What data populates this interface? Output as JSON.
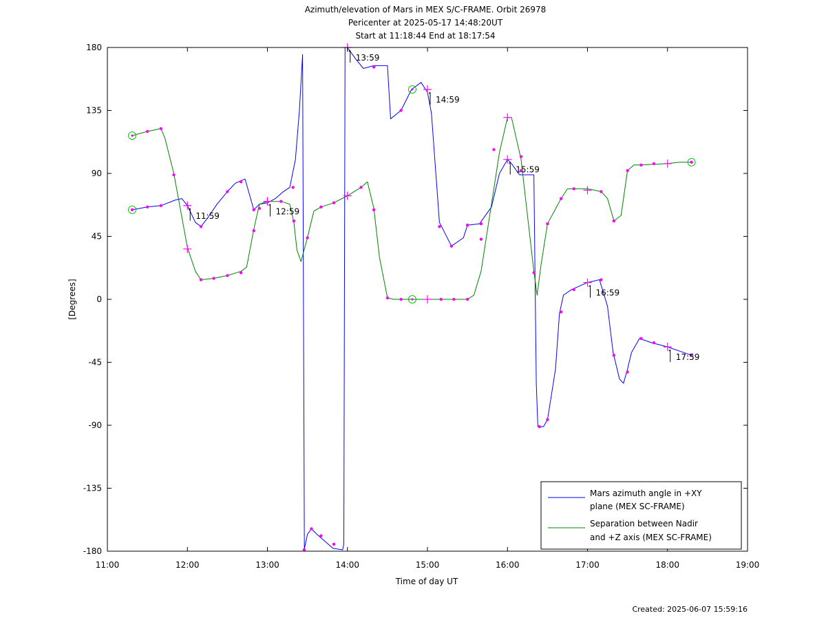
{
  "header": {
    "title_line1": "Azimuth/elevation of Mars in MEX S/C-FRAME.  Orbit 26978",
    "title_line2": "Pericenter at 2025-05-17 14:48:20UT",
    "title_line3": "Start at 11:18:44 End at 18:17:54"
  },
  "footer": {
    "created": "Created: 2025-06-07 15:59:16"
  },
  "chart_data": {
    "type": "line",
    "xlabel": "Time of day UT",
    "ylabel": "[Degrees]",
    "xlim": [
      11.0,
      19.0
    ],
    "ylim": [
      -180,
      180
    ],
    "xticks": [
      11,
      12,
      13,
      14,
      15,
      16,
      17,
      18,
      19
    ],
    "xtick_labels": [
      "11:00",
      "12:00",
      "13:00",
      "14:00",
      "15:00",
      "16:00",
      "17:00",
      "18:00",
      "19:00"
    ],
    "yticks": [
      180,
      135,
      90,
      45,
      0,
      -45,
      -90,
      -135,
      -180
    ],
    "ytick_labels": [
      "180",
      "135",
      "90",
      "45",
      "0",
      "-45",
      "-90",
      "-135",
      "-180"
    ],
    "grid": false,
    "legend_position": "bottom-right",
    "series": [
      {
        "name": "Mars azimuth angle in +XY plane (MEX SC-FRAME)",
        "legend_lines": [
          "Mars azimuth angle in +XY",
          "plane (MEX SC-FRAME)"
        ],
        "color": "#0000ff",
        "x": [
          11.31,
          11.5,
          11.67,
          11.85,
          11.93,
          12.0,
          12.1,
          12.17,
          12.25,
          12.37,
          12.5,
          12.6,
          12.72,
          12.83,
          12.9,
          13.0,
          13.1,
          13.2,
          13.28,
          13.35,
          13.4,
          13.44,
          13.462,
          13.464,
          13.5,
          13.55,
          13.62,
          13.7,
          13.82,
          13.94,
          13.955,
          13.97,
          14.0,
          14.1,
          14.2,
          14.33,
          14.5,
          14.54,
          14.67,
          14.8,
          14.92,
          15.0,
          15.05,
          15.15,
          15.3,
          15.45,
          15.5,
          15.65,
          15.8,
          15.9,
          16.0,
          16.05,
          16.15,
          16.2,
          16.33,
          16.36,
          16.38,
          16.45,
          16.5,
          16.6,
          16.65,
          16.7,
          16.8,
          17.0,
          17.15,
          17.25,
          17.32,
          17.4,
          17.45,
          17.5,
          17.55,
          17.65,
          17.8,
          18.0,
          18.15,
          18.3
        ],
        "y": [
          64,
          66,
          67,
          71,
          72,
          67,
          55,
          52,
          58,
          68,
          77,
          83,
          86,
          64,
          68,
          69,
          72,
          77,
          80,
          100,
          135,
          175,
          -180,
          -178,
          -168,
          -164,
          -168,
          -172,
          -178,
          -179,
          -175,
          180,
          180,
          172,
          165,
          167,
          167,
          129,
          135,
          150,
          155,
          148,
          133,
          55,
          38,
          44,
          53,
          54,
          66,
          90,
          100,
          97,
          89,
          89,
          89,
          -60,
          -91,
          -91,
          -86,
          -50,
          -10,
          3,
          7,
          12,
          14,
          -5,
          -38,
          -57,
          -60,
          -50,
          -38,
          -28,
          -31,
          -34,
          -37,
          -40
        ],
        "markers": {
          "dots": [
            [
              11.31,
              64
            ],
            [
              11.5,
              66
            ],
            [
              11.67,
              67
            ],
            [
              12.17,
              52
            ],
            [
              12.5,
              77
            ],
            [
              12.67,
              84
            ],
            [
              12.83,
              64
            ],
            [
              13.32,
              80
            ],
            [
              13.46,
              -179
            ],
            [
              13.55,
              -164
            ],
            [
              13.67,
              -169
            ],
            [
              13.83,
              -175
            ],
            [
              14.33,
              166
            ],
            [
              14.67,
              135
            ],
            [
              15.15,
              52
            ],
            [
              15.3,
              38
            ],
            [
              15.5,
              53
            ],
            [
              15.67,
              54
            ],
            [
              16.17,
              92
            ],
            [
              16.4,
              -91
            ],
            [
              16.5,
              -86
            ],
            [
              16.67,
              -9
            ],
            [
              16.83,
              7
            ],
            [
              17.17,
              14
            ],
            [
              17.33,
              -40
            ],
            [
              17.5,
              -52
            ],
            [
              17.67,
              -28
            ],
            [
              17.83,
              -31
            ],
            [
              18.3,
              -40
            ]
          ],
          "crosses": [
            [
              12.0,
              67
            ],
            [
              13.0,
              70
            ],
            [
              14.0,
              180
            ],
            [
              15.0,
              150
            ],
            [
              16.0,
              100
            ],
            [
              17.0,
              12
            ],
            [
              18.0,
              -34
            ]
          ],
          "circles": [
            [
              11.31,
              64
            ],
            [
              14.81,
              150
            ]
          ]
        }
      },
      {
        "name": "Separation between Nadir and +Z axis (MEX SC-FRAME)",
        "legend_lines": [
          "Separation between Nadir",
          "and +Z axis (MEX SC-FRAME)"
        ],
        "color": "#008000",
        "x": [
          11.31,
          11.5,
          11.67,
          11.72,
          11.83,
          12.0,
          12.1,
          12.17,
          12.33,
          12.5,
          12.67,
          12.74,
          12.83,
          12.9,
          13.0,
          13.17,
          13.28,
          13.33,
          13.37,
          13.42,
          13.5,
          13.58,
          13.67,
          13.83,
          14.0,
          14.17,
          14.25,
          14.33,
          14.4,
          14.5,
          14.58,
          14.67,
          15.0,
          15.17,
          15.3,
          15.5,
          15.58,
          15.67,
          15.8,
          15.9,
          16.0,
          16.05,
          16.17,
          16.25,
          16.33,
          16.37,
          16.42,
          16.5,
          16.67,
          16.75,
          16.83,
          17.0,
          17.17,
          17.25,
          17.33,
          17.42,
          17.5,
          17.58,
          17.67,
          18.0,
          18.15,
          18.3
        ],
        "y": [
          117,
          120,
          122,
          115,
          90,
          37,
          20,
          14,
          15,
          17,
          20,
          23,
          50,
          68,
          70,
          70,
          68,
          55,
          35,
          27,
          44,
          63,
          66,
          69,
          74,
          80,
          84,
          65,
          30,
          1,
          0,
          0,
          0,
          0,
          0,
          0,
          3,
          20,
          68,
          105,
          130,
          130,
          100,
          60,
          20,
          3,
          25,
          54,
          72,
          79,
          79,
          79,
          77,
          72,
          56,
          60,
          92,
          96,
          96,
          97,
          98,
          98
        ],
        "markers": {
          "dots": [
            [
              11.5,
              120
            ],
            [
              11.67,
              122
            ],
            [
              11.83,
              89
            ],
            [
              12.17,
              14
            ],
            [
              12.33,
              15
            ],
            [
              12.5,
              17
            ],
            [
              12.67,
              19
            ],
            [
              12.83,
              49
            ],
            [
              12.9,
              65
            ],
            [
              13.17,
              70
            ],
            [
              13.33,
              56
            ],
            [
              13.5,
              44
            ],
            [
              13.67,
              66
            ],
            [
              13.83,
              69
            ],
            [
              14.17,
              80
            ],
            [
              14.33,
              64
            ],
            [
              14.5,
              1
            ],
            [
              14.67,
              0
            ],
            [
              15.17,
              0
            ],
            [
              15.33,
              0
            ],
            [
              15.5,
              0
            ],
            [
              15.67,
              43
            ],
            [
              15.83,
              107
            ],
            [
              16.17,
              102
            ],
            [
              16.33,
              19
            ],
            [
              16.5,
              54
            ],
            [
              16.67,
              72
            ],
            [
              16.83,
              79
            ],
            [
              17.17,
              77
            ],
            [
              17.33,
              56
            ],
            [
              17.5,
              92
            ],
            [
              17.67,
              96
            ],
            [
              17.83,
              97
            ],
            [
              18.3,
              98
            ]
          ],
          "crosses": [
            [
              12.0,
              36
            ],
            [
              13.0,
              70
            ],
            [
              14.0,
              74
            ],
            [
              15.0,
              0
            ],
            [
              16.0,
              130
            ],
            [
              17.0,
              78
            ],
            [
              18.0,
              97
            ]
          ],
          "circles": [
            [
              11.31,
              117
            ],
            [
              14.81,
              0
            ],
            [
              18.3,
              98
            ]
          ]
        }
      }
    ],
    "annotations": [
      {
        "label": "11:59",
        "x": 12.0,
        "y": 67
      },
      {
        "label": "12:59",
        "x": 13.0,
        "y": 70
      },
      {
        "label": "13:59",
        "x": 14.0,
        "y": 180
      },
      {
        "label": "14:59",
        "x": 15.0,
        "y": 150
      },
      {
        "label": "15:59",
        "x": 16.0,
        "y": 100
      },
      {
        "label": "16:59",
        "x": 17.0,
        "y": 12
      },
      {
        "label": "17:59",
        "x": 18.0,
        "y": -34
      }
    ]
  }
}
